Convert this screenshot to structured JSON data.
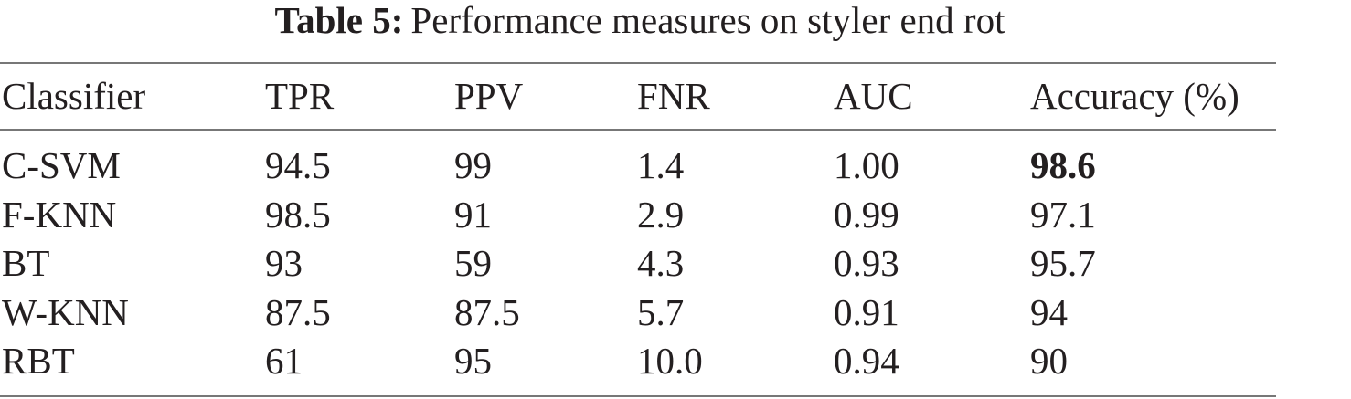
{
  "caption": {
    "label": "Table 5:",
    "text": "Performance measures on styler end rot"
  },
  "table": {
    "header": [
      "Classifier",
      "TPR",
      "PPV",
      "FNR",
      "AUC",
      "Accuracy (%)"
    ],
    "rows": [
      [
        "C-SVM",
        "94.5",
        "99",
        "1.4",
        "1.00",
        "98.6"
      ],
      [
        "F-KNN",
        "98.5",
        "91",
        "2.9",
        "0.99",
        "97.1"
      ],
      [
        "BT",
        "93",
        "59",
        "4.3",
        "0.93",
        "95.7"
      ],
      [
        "W-KNN",
        "87.5",
        "87.5",
        "5.7",
        "0.91",
        "94"
      ],
      [
        "RBT",
        "61",
        "95",
        "10.0",
        "0.94",
        "90"
      ]
    ],
    "bold_cells": [
      [
        0,
        5
      ]
    ]
  }
}
